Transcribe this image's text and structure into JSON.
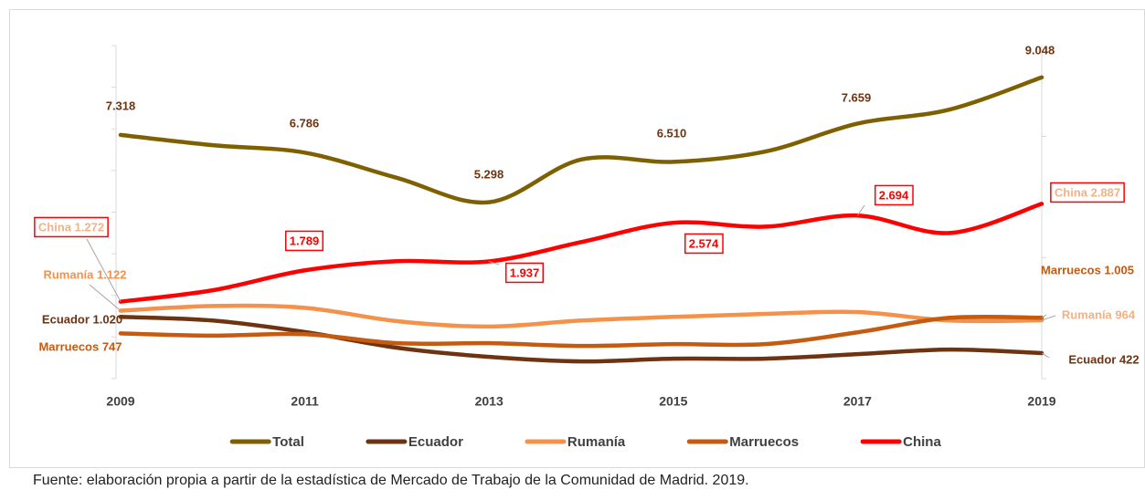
{
  "chart_data": {
    "type": "line",
    "x": [
      2009,
      2010,
      2011,
      2012,
      2013,
      2014,
      2015,
      2016,
      2017,
      2018,
      2019
    ],
    "xlim": [
      2009,
      2019
    ],
    "xticks": [
      2009,
      2011,
      2013,
      2015,
      2017,
      2019
    ],
    "ylim": [
      0,
      10000
    ],
    "yticks": [
      0,
      1250,
      2500,
      3750,
      5000,
      6250,
      7500,
      8750,
      10000
    ],
    "y2lim": [
      0,
      5500
    ],
    "y2ticks": [
      0,
      2000,
      4000
    ],
    "legend": "bottom",
    "series": [
      {
        "name": "Total",
        "color": "#7f6000",
        "values": [
          7318,
          7010,
          6786,
          6030,
          5298,
          6580,
          6510,
          6820,
          7659,
          8080,
          9048
        ],
        "value_labels": [
          "7.318",
          null,
          "6.786",
          null,
          "5.298",
          null,
          "6.510",
          null,
          "7.659",
          null,
          "9.048"
        ]
      },
      {
        "name": "Ecuador",
        "color": "#6e3412",
        "axis": "y2",
        "values": [
          1020,
          960,
          770,
          510,
          360,
          285,
          330,
          330,
          405,
          480,
          422
        ],
        "value_labels": [
          "Ecuador 1.020",
          null,
          null,
          null,
          null,
          null,
          null,
          null,
          null,
          null,
          "Ecuador 422"
        ]
      },
      {
        "name": "Rumanía",
        "color": "#f4914a",
        "axis": "y2",
        "values": [
          1122,
          1200,
          1170,
          950,
          860,
          960,
          1020,
          1070,
          1100,
          960,
          964
        ],
        "value_labels": [
          "Rumanía 1.122",
          null,
          null,
          null,
          null,
          null,
          null,
          null,
          null,
          null,
          "Rumanía 964"
        ]
      },
      {
        "name": "Marruecos",
        "color": "#c55a11",
        "axis": "y2",
        "values": [
          747,
          710,
          735,
          585,
          585,
          540,
          570,
          570,
          765,
          1005,
          1005
        ],
        "value_labels": [
          "Marruecos 747",
          null,
          null,
          null,
          null,
          null,
          null,
          null,
          null,
          null,
          "Marruecos 1.005"
        ]
      },
      {
        "name": "China",
        "color": "#ff0000",
        "axis": "y2",
        "values": [
          1272,
          1460,
          1789,
          1940,
          1937,
          2255,
          2574,
          2510,
          2694,
          2405,
          2887
        ],
        "value_labels": [
          "China 1.272",
          null,
          "1.789",
          null,
          "1.937",
          null,
          "2.574",
          null,
          "2.694",
          null,
          "China 2.887"
        ]
      }
    ],
    "source": "Fuente: elaboración propia a partir de la estadística de Mercado de Trabajo de la Comunidad de Madrid. 2019."
  }
}
